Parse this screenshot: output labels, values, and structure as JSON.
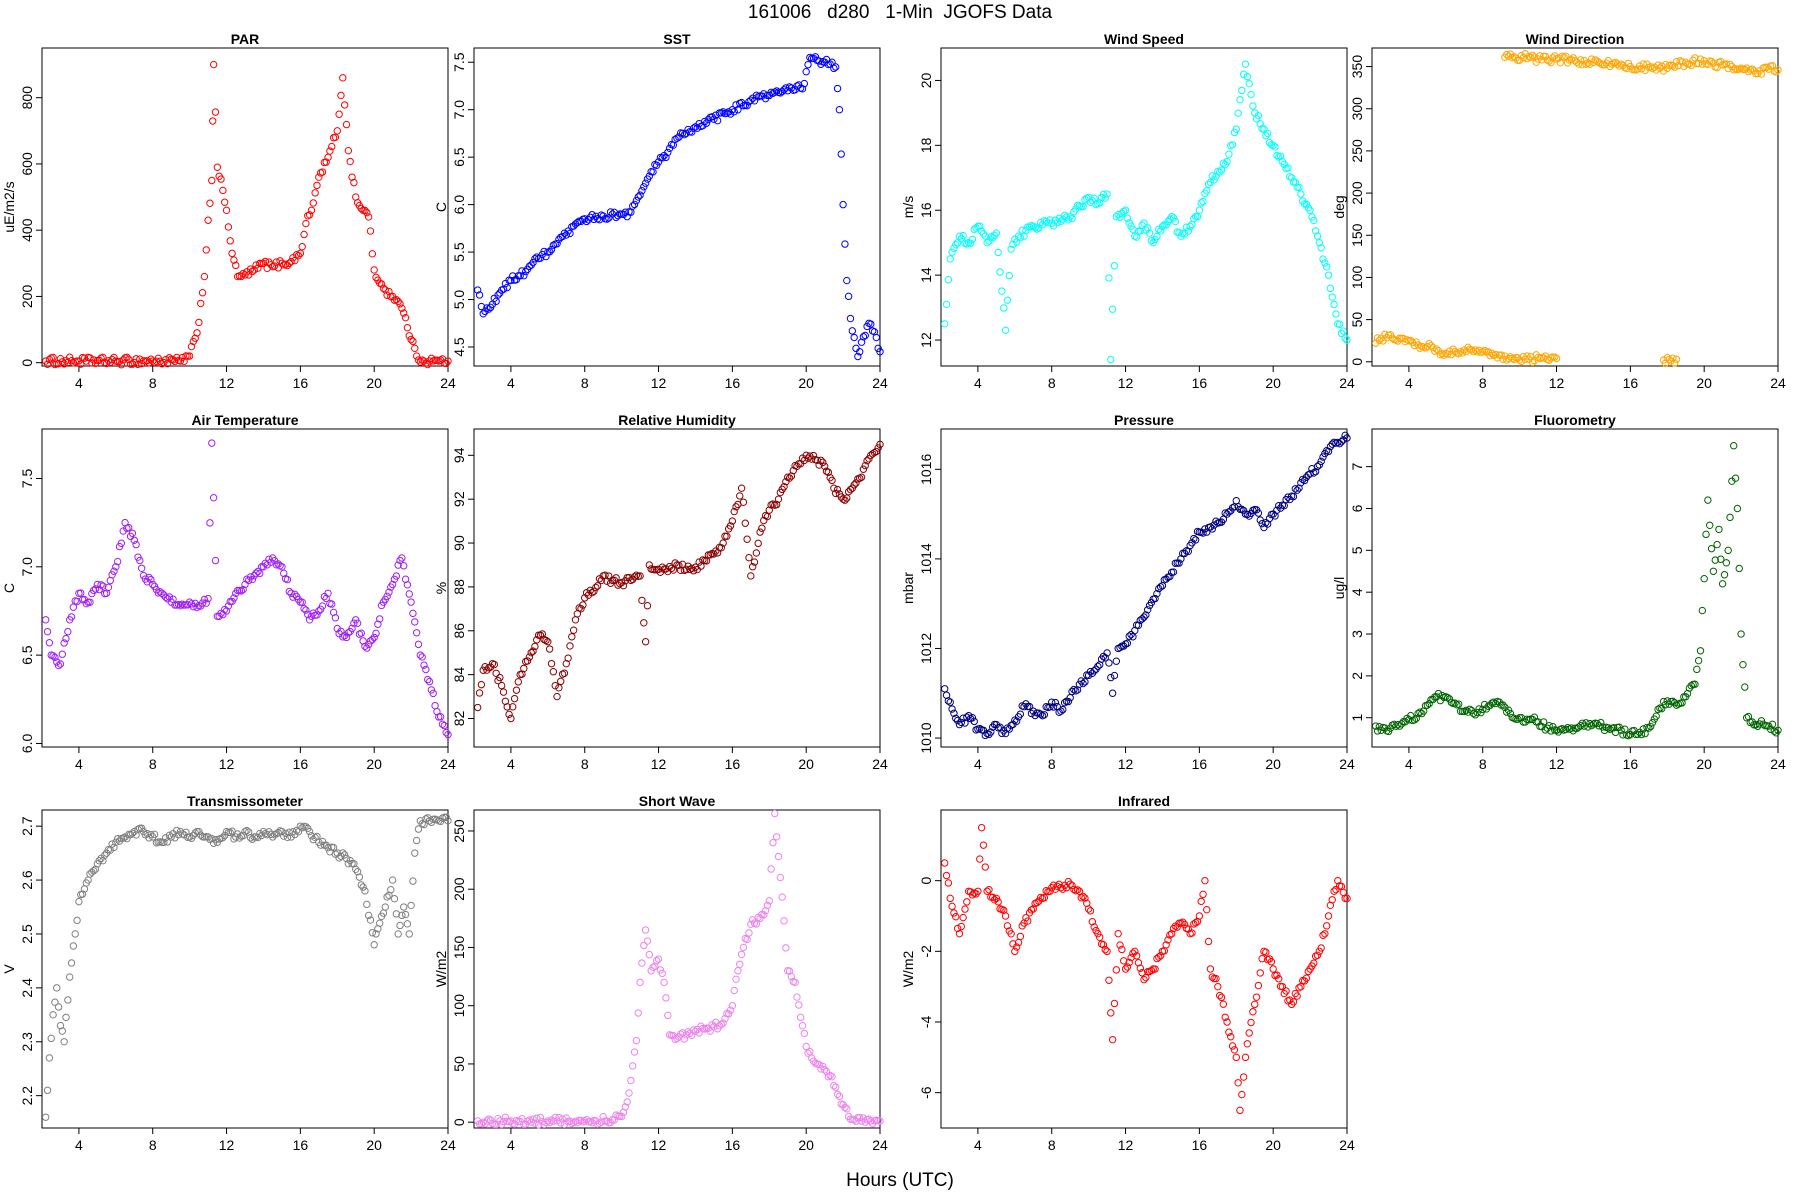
{
  "figure": {
    "title": "161006   d280   1-Min  JGOFS Data",
    "xlabel": "Hours (UTC)"
  },
  "chart_data": [
    {
      "type": "scatter",
      "title": "PAR",
      "ylabel": "uE/m2/s",
      "color": "#ff0000",
      "xlim": [
        2,
        24
      ],
      "ylim": [
        -10,
        950
      ],
      "xticks": [
        4,
        8,
        12,
        16,
        20,
        24
      ],
      "yticks": [
        0,
        200,
        400,
        600,
        800
      ],
      "x": [
        2.2,
        4,
        6,
        8,
        9.5,
        10,
        10.4,
        10.8,
        11,
        11.2,
        11.3,
        11.5,
        11.8,
        12,
        12.3,
        12.6,
        13,
        13.5,
        14,
        14.5,
        15,
        15.5,
        16,
        16.3,
        16.6,
        17,
        17.5,
        18,
        18.3,
        18.6,
        19,
        19.4,
        19.7,
        20,
        20.3,
        20.6,
        21,
        21.3,
        21.6,
        22,
        22.3,
        22.6,
        23,
        23.5,
        24
      ],
      "y": [
        5,
        5,
        5,
        5,
        5,
        20,
        90,
        260,
        430,
        550,
        900,
        590,
        520,
        460,
        330,
        260,
        265,
        280,
        300,
        290,
        300,
        305,
        330,
        420,
        460,
        560,
        620,
        700,
        860,
        640,
        500,
        460,
        440,
        280,
        240,
        220,
        200,
        185,
        150,
        70,
        20,
        8,
        5,
        5,
        5
      ]
    },
    {
      "type": "scatter",
      "title": "SST",
      "ylabel": "C",
      "color": "#0000ff",
      "xlim": [
        2,
        24
      ],
      "ylim": [
        4.3,
        7.65
      ],
      "xticks": [
        4,
        8,
        12,
        16,
        20,
        24
      ],
      "yticks": [
        4.5,
        5.0,
        5.5,
        6.0,
        6.5,
        7.0,
        7.5
      ],
      "x": [
        2.2,
        2.5,
        3,
        3.5,
        4,
        4.5,
        5,
        6,
        7,
        8,
        9,
        10,
        10.5,
        11,
        11.5,
        12,
        12.5,
        13,
        13.5,
        14,
        15,
        16,
        17,
        18,
        19,
        19.5,
        19.8,
        20.2,
        20.6,
        21,
        21.3,
        21.6,
        21.8,
        22,
        22.2,
        22.4,
        22.6,
        22.8,
        23,
        23.4,
        23.8,
        24
      ],
      "y": [
        5.1,
        4.85,
        4.95,
        5.1,
        5.2,
        5.25,
        5.35,
        5.5,
        5.68,
        5.85,
        5.88,
        5.9,
        5.92,
        6.1,
        6.3,
        6.45,
        6.55,
        6.7,
        6.75,
        6.82,
        6.9,
        7.0,
        7.1,
        7.15,
        7.2,
        7.25,
        7.22,
        7.55,
        7.52,
        7.5,
        7.48,
        7.45,
        7.0,
        6.0,
        5.2,
        4.8,
        4.6,
        4.4,
        4.55,
        4.75,
        4.6,
        4.45
      ]
    },
    {
      "type": "scatter",
      "title": "Wind Speed",
      "ylabel": "m/s",
      "color": "#00ffff",
      "xlim": [
        2,
        24
      ],
      "ylim": [
        11.2,
        21
      ],
      "xticks": [
        4,
        8,
        12,
        16,
        20,
        24
      ],
      "yticks": [
        12,
        14,
        16,
        18,
        20
      ],
      "x": [
        2.2,
        2.5,
        3,
        3.5,
        4,
        4.5,
        5,
        5.5,
        5.8,
        6.2,
        7,
        8,
        9,
        10,
        10.5,
        11,
        11.2,
        11.5,
        12,
        12.5,
        13,
        13.5,
        14,
        14.5,
        15,
        15.5,
        16,
        16.5,
        17,
        17.5,
        18,
        18.5,
        19,
        19.5,
        20,
        20.5,
        21,
        21.5,
        22,
        22.5,
        23,
        23.5,
        24
      ],
      "y": [
        12.5,
        14.5,
        15.2,
        15.0,
        15.5,
        15.0,
        15.3,
        12.3,
        14.8,
        15.2,
        15.5,
        15.6,
        15.8,
        16.4,
        16.2,
        16.5,
        11.4,
        15.8,
        16.0,
        15.2,
        15.6,
        15.0,
        15.5,
        15.8,
        15.2,
        15.5,
        16.0,
        16.8,
        17.2,
        17.5,
        18.5,
        20.5,
        19.0,
        18.5,
        18.0,
        17.5,
        17.0,
        16.5,
        16.0,
        15.0,
        14.0,
        12.5,
        12.0
      ]
    },
    {
      "type": "scatter",
      "title": "Wind Direction",
      "ylabel": "deg",
      "color": "#ffa500",
      "xlim": [
        2,
        24
      ],
      "ylim": [
        -5,
        372
      ],
      "xticks": [
        4,
        8,
        12,
        16,
        20,
        24
      ],
      "yticks": [
        0,
        50,
        100,
        150,
        200,
        250,
        300,
        350
      ],
      "x": [
        2.2,
        2.5,
        3,
        3.5,
        4,
        4.5,
        5,
        5.5,
        6,
        6.5,
        7,
        7.5,
        8,
        8.5,
        9,
        9.3,
        9.6,
        10,
        10.5,
        11,
        11.5,
        12,
        9.2,
        9.8,
        10.5,
        11.2,
        12,
        13,
        14,
        15,
        16,
        17,
        18,
        19,
        20,
        20.5,
        21,
        21.5,
        22,
        22.5,
        23,
        23.5,
        24,
        17.8,
        18.2,
        18.5
      ],
      "y": [
        22,
        28,
        32,
        28,
        25,
        20,
        18,
        15,
        10,
        12,
        14,
        12,
        12,
        10,
        8,
        2,
        4,
        2,
        3,
        5,
        3,
        4,
        361,
        360,
        362,
        358,
        359,
        357,
        355,
        353,
        350,
        349,
        348,
        355,
        357,
        354,
        352,
        350,
        348,
        346,
        345,
        347,
        346,
        2,
        1,
        3
      ]
    },
    {
      "type": "scatter",
      "title": "Air Temperature",
      "ylabel": "C",
      "color": "#a020f0",
      "xlim": [
        2,
        24
      ],
      "ylim": [
        5.98,
        7.78
      ],
      "xticks": [
        4,
        8,
        12,
        16,
        20,
        24
      ],
      "yticks": [
        6.0,
        6.5,
        7.0,
        7.5
      ],
      "x": [
        2.2,
        2.5,
        3,
        3.5,
        4,
        4.5,
        5,
        5.5,
        6,
        6.5,
        7,
        7.5,
        8,
        8.5,
        9,
        9.5,
        10,
        10.5,
        11,
        11.2,
        11.5,
        12,
        12.5,
        13,
        13.5,
        14,
        14.5,
        15,
        15.5,
        16,
        16.5,
        17,
        17.5,
        18,
        18.5,
        19,
        19.5,
        20,
        20.5,
        21,
        21.5,
        22,
        22.5,
        23,
        23.5,
        24
      ],
      "y": [
        6.7,
        6.5,
        6.45,
        6.7,
        6.85,
        6.8,
        6.9,
        6.85,
        7.0,
        7.25,
        7.15,
        6.95,
        6.9,
        6.85,
        6.8,
        6.78,
        6.8,
        6.78,
        6.82,
        7.7,
        6.72,
        6.75,
        6.85,
        6.9,
        6.95,
        7.0,
        7.05,
        7.0,
        6.85,
        6.8,
        6.7,
        6.75,
        6.85,
        6.65,
        6.6,
        6.7,
        6.55,
        6.6,
        6.8,
        6.9,
        7.05,
        6.8,
        6.5,
        6.35,
        6.15,
        6.05
      ]
    },
    {
      "type": "scatter",
      "title": "Relative Humidity",
      "ylabel": "%",
      "color": "#8b0000",
      "xlim": [
        2,
        24
      ],
      "ylim": [
        80.7,
        95.2
      ],
      "xticks": [
        4,
        8,
        12,
        16,
        20,
        24
      ],
      "yticks": [
        82,
        84,
        86,
        88,
        90,
        92,
        94
      ],
      "x": [
        2.2,
        2.5,
        3,
        3.5,
        4,
        4.5,
        5,
        5.5,
        6,
        6.5,
        7,
        7.5,
        8,
        8.5,
        9,
        9.5,
        10,
        10.5,
        11,
        11.3,
        11.5,
        12,
        12.5,
        13,
        13.5,
        14,
        14.5,
        15,
        15.5,
        16,
        16.5,
        17,
        17.5,
        18,
        18.5,
        19,
        19.5,
        20,
        20.5,
        21,
        21.5,
        22,
        22.5,
        23,
        23.5,
        24
      ],
      "y": [
        82.5,
        84.2,
        84.5,
        83.5,
        82.0,
        84.0,
        84.8,
        85.8,
        85.5,
        83.0,
        84.5,
        86.5,
        87.5,
        87.8,
        88.5,
        88.3,
        88.2,
        88.3,
        88.5,
        85.5,
        89.0,
        88.8,
        88.7,
        89.0,
        88.8,
        88.9,
        89.2,
        89.5,
        90.0,
        91.0,
        92.5,
        88.5,
        90.5,
        91.5,
        92.0,
        93.0,
        93.5,
        94.0,
        93.8,
        93.5,
        92.5,
        92.0,
        92.5,
        93.0,
        94.0,
        94.5
      ]
    },
    {
      "type": "scatter",
      "title": "Pressure",
      "ylabel": "mbar",
      "color": "#000080",
      "xlim": [
        2,
        24
      ],
      "ylim": [
        1009.8,
        1016.9
      ],
      "xticks": [
        4,
        8,
        12,
        16,
        20,
        24
      ],
      "yticks": [
        1010,
        1012,
        1014,
        1016
      ],
      "x": [
        2.2,
        2.5,
        3,
        3.5,
        4,
        4.5,
        5,
        5.5,
        6,
        6.5,
        7,
        7.5,
        8,
        8.5,
        9,
        9.5,
        10,
        10.5,
        11,
        11.3,
        11.6,
        12,
        12.5,
        13,
        13.5,
        14,
        14.5,
        15,
        15.5,
        16,
        16.5,
        17,
        17.5,
        18,
        18.5,
        19,
        19.5,
        20,
        20.5,
        21,
        21.5,
        22,
        22.5,
        23,
        23.5,
        24
      ],
      "y": [
        1011.1,
        1010.8,
        1010.3,
        1010.5,
        1010.2,
        1010.1,
        1010.3,
        1010.1,
        1010.4,
        1010.7,
        1010.6,
        1010.5,
        1010.8,
        1010.6,
        1010.9,
        1011.2,
        1011.4,
        1011.6,
        1011.9,
        1011.0,
        1012.0,
        1012.1,
        1012.4,
        1012.7,
        1013.1,
        1013.4,
        1013.7,
        1014.0,
        1014.3,
        1014.6,
        1014.7,
        1014.8,
        1015.0,
        1015.3,
        1015.0,
        1015.1,
        1014.7,
        1015.0,
        1015.2,
        1015.4,
        1015.7,
        1015.9,
        1016.1,
        1016.4,
        1016.6,
        1016.7
      ]
    },
    {
      "type": "scatter",
      "title": "Fluorometry",
      "ylabel": "ug/l",
      "color": "#006400",
      "xlim": [
        2,
        24
      ],
      "ylim": [
        0.3,
        7.9
      ],
      "xticks": [
        4,
        8,
        12,
        16,
        20,
        24
      ],
      "yticks": [
        1,
        2,
        3,
        4,
        5,
        6,
        7
      ],
      "x": [
        2.2,
        2.5,
        3,
        3.5,
        4,
        4.5,
        5,
        5.5,
        6,
        6.5,
        7,
        7.5,
        8,
        8.5,
        9,
        9.5,
        10,
        10.5,
        11,
        11.5,
        12,
        12.5,
        13,
        13.5,
        14,
        14.5,
        15,
        15.5,
        16,
        16.5,
        17,
        17.5,
        18,
        18.5,
        19,
        19.5,
        19.8,
        20.2,
        20.5,
        20.8,
        21.0,
        21.3,
        21.6,
        21.8,
        22.0,
        22.3,
        22.6,
        23,
        23.5,
        24
      ],
      "y": [
        0.8,
        0.7,
        0.75,
        0.8,
        0.95,
        1.1,
        1.3,
        1.5,
        1.5,
        1.35,
        1.15,
        1.1,
        1.2,
        1.35,
        1.3,
        1.1,
        1.0,
        0.95,
        0.9,
        0.75,
        0.7,
        0.72,
        0.75,
        0.8,
        0.85,
        0.78,
        0.75,
        0.7,
        0.6,
        0.65,
        0.75,
        1.2,
        1.4,
        1.3,
        1.5,
        1.8,
        2.6,
        6.2,
        4.5,
        5.5,
        4.2,
        5.0,
        7.5,
        6.0,
        3.0,
        1.0,
        0.9,
        0.85,
        0.8,
        0.7
      ]
    },
    {
      "type": "scatter",
      "title": "Transmissometer",
      "ylabel": "V",
      "color": "#808080",
      "xlim": [
        2,
        24
      ],
      "ylim": [
        2.14,
        2.73
      ],
      "xticks": [
        4,
        8,
        12,
        16,
        20,
        24
      ],
      "yticks": [
        2.2,
        2.3,
        2.4,
        2.5,
        2.6,
        2.7
      ],
      "x": [
        2.2,
        2.4,
        2.6,
        2.8,
        3.0,
        3.2,
        3.5,
        3.8,
        4.0,
        4.5,
        5,
        5.5,
        6,
        6.5,
        7,
        7.5,
        8,
        8.5,
        9,
        9.5,
        10,
        10.5,
        11,
        11.5,
        12,
        12.5,
        13,
        13.5,
        14,
        14.5,
        15,
        15.5,
        16,
        16.5,
        17,
        17.5,
        18,
        18.5,
        19,
        19.5,
        20,
        20.3,
        20.6,
        21,
        21.3,
        21.6,
        21.9,
        22.2,
        22.5,
        23,
        23.5,
        24
      ],
      "y": [
        2.16,
        2.27,
        2.35,
        2.4,
        2.33,
        2.3,
        2.42,
        2.5,
        2.56,
        2.6,
        2.63,
        2.65,
        2.67,
        2.68,
        2.69,
        2.69,
        2.68,
        2.67,
        2.68,
        2.69,
        2.68,
        2.69,
        2.68,
        2.67,
        2.69,
        2.68,
        2.69,
        2.68,
        2.69,
        2.68,
        2.69,
        2.68,
        2.7,
        2.69,
        2.67,
        2.66,
        2.65,
        2.64,
        2.62,
        2.58,
        2.48,
        2.52,
        2.55,
        2.6,
        2.5,
        2.55,
        2.5,
        2.65,
        2.71,
        2.71,
        2.71,
        2.71
      ]
    },
    {
      "type": "scatter",
      "title": "Short Wave",
      "ylabel": "W/m2",
      "color": "#ee82ee",
      "xlim": [
        2,
        24
      ],
      "ylim": [
        -5,
        268
      ],
      "xticks": [
        4,
        8,
        12,
        16,
        20,
        24
      ],
      "yticks": [
        0,
        50,
        100,
        150,
        200,
        250
      ],
      "x": [
        2.2,
        4,
        6,
        8,
        9.5,
        10,
        10.4,
        10.8,
        11,
        11.3,
        11.6,
        12,
        12.3,
        12.6,
        13,
        13.5,
        14,
        14.5,
        15,
        15.5,
        16,
        16.3,
        16.6,
        17,
        17.5,
        18,
        18.3,
        18.6,
        19,
        19.4,
        19.7,
        20,
        20.3,
        20.6,
        21,
        21.3,
        21.6,
        22,
        22.3,
        22.6,
        23,
        23.5,
        24
      ],
      "y": [
        1,
        1,
        1,
        1,
        2,
        5,
        25,
        70,
        120,
        165,
        130,
        140,
        120,
        75,
        72,
        75,
        78,
        80,
        82,
        85,
        100,
        130,
        150,
        170,
        175,
        190,
        265,
        210,
        130,
        120,
        90,
        65,
        55,
        50,
        45,
        40,
        30,
        15,
        5,
        2,
        1,
        1,
        1
      ]
    },
    {
      "type": "scatter",
      "title": "Infrared",
      "ylabel": "W/m2",
      "color": "#ff0000",
      "xlim": [
        2,
        24
      ],
      "ylim": [
        -7.0,
        2.0
      ],
      "xticks": [
        4,
        8,
        12,
        16,
        20,
        24
      ],
      "yticks": [
        -6,
        -4,
        -2,
        0
      ],
      "x": [
        2.2,
        2.5,
        3,
        3.5,
        4,
        4.2,
        4.5,
        5,
        5.5,
        6,
        6.5,
        7,
        7.5,
        8,
        8.5,
        9,
        9.5,
        10,
        10.5,
        11,
        11.3,
        11.6,
        12,
        12.5,
        13,
        13.5,
        14,
        14.5,
        15,
        15.5,
        16,
        16.3,
        16.6,
        17,
        17.5,
        18,
        18.2,
        18.5,
        19,
        19.5,
        20,
        20.5,
        21,
        21.5,
        22,
        22.5,
        23,
        23.5,
        24
      ],
      "y": [
        0.5,
        -0.5,
        -1.5,
        -0.3,
        -0.3,
        1.5,
        -0.3,
        -0.5,
        -1.0,
        -2.0,
        -1.2,
        -0.8,
        -0.5,
        -0.2,
        -0.2,
        -0.1,
        -0.3,
        -0.8,
        -1.5,
        -2.0,
        -4.5,
        -1.5,
        -2.5,
        -2.0,
        -2.8,
        -2.5,
        -2.0,
        -1.5,
        -1.2,
        -1.5,
        -1.0,
        0.0,
        -2.5,
        -3.0,
        -4.0,
        -5.0,
        -6.5,
        -5.0,
        -3.5,
        -2.0,
        -2.5,
        -3.0,
        -3.5,
        -3.0,
        -2.5,
        -2.0,
        -1.0,
        0.0,
        -0.5
      ]
    }
  ]
}
